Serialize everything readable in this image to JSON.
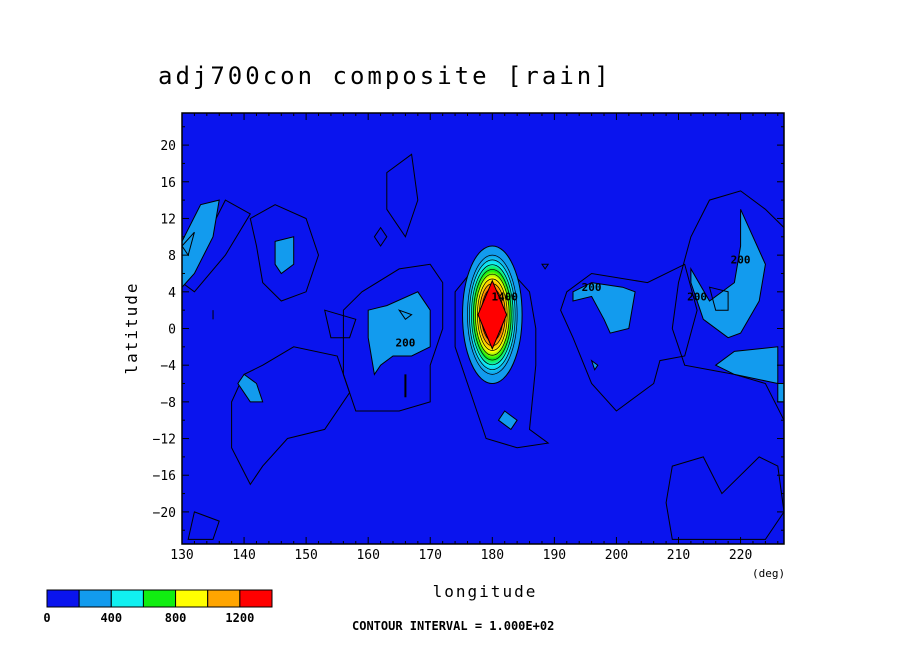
{
  "chart_data": {
    "type": "heatmap",
    "title": "adj700con composite [rain]",
    "xlabel": "longitude",
    "xunit": "(deg)",
    "ylabel": "latitude",
    "xlim": [
      130,
      227
    ],
    "ylim": [
      -23.5,
      23.5
    ],
    "x_ticks": [
      130,
      140,
      150,
      160,
      170,
      180,
      190,
      200,
      210,
      220
    ],
    "x_tick_labels": [
      "130",
      "140",
      "150",
      "160",
      "170",
      "180",
      "190",
      "200",
      "210",
      "220"
    ],
    "y_ticks": [
      20,
      16,
      12,
      8,
      4,
      0,
      -4,
      -8,
      -12,
      -16,
      -20
    ],
    "y_tick_labels": [
      "20",
      "16",
      "12",
      "8",
      "4",
      "0",
      "−4",
      "−8",
      "−12",
      "−16",
      "−20"
    ],
    "contour_interval_text": "CONTOUR INTERVAL = 1.000E+02",
    "contour_labels": [
      {
        "text": "200",
        "lon": 166,
        "lat": -1.5
      },
      {
        "text": "200",
        "lon": 196,
        "lat": 4.5
      },
      {
        "text": "200",
        "lon": 213,
        "lat": 3.5
      },
      {
        "text": "200",
        "lon": 220,
        "lat": 7.5
      },
      {
        "text": "1400",
        "lon": 182,
        "lat": 3.5
      }
    ],
    "colorbar": {
      "colors": [
        "#0a14ee",
        "#129bee",
        "#11f0f0",
        "#11ee11",
        "#ffff00",
        "#ffa500",
        "#ff0000"
      ],
      "tick_values": [
        0,
        400,
        800,
        1200
      ],
      "tick_labels": [
        "0",
        "400",
        "800",
        "1200"
      ],
      "range": [
        0,
        1400
      ]
    },
    "rain_maxima": [
      {
        "lon": 180,
        "lat": 1.5,
        "value": 1400
      },
      {
        "lon": 133,
        "lat": 10,
        "value": 300
      },
      {
        "lon": 147,
        "lat": 8.5,
        "value": 300
      },
      {
        "lon": 166,
        "lat": 1.5,
        "value": 400
      },
      {
        "lon": 142,
        "lat": -6,
        "value": 300
      },
      {
        "lon": 183,
        "lat": -10,
        "value": 300
      },
      {
        "lon": 200,
        "lat": 3.5,
        "value": 300
      },
      {
        "lon": 217,
        "lat": 4,
        "value": 400
      },
      {
        "lon": 220,
        "lat": -3,
        "value": 300
      }
    ]
  }
}
